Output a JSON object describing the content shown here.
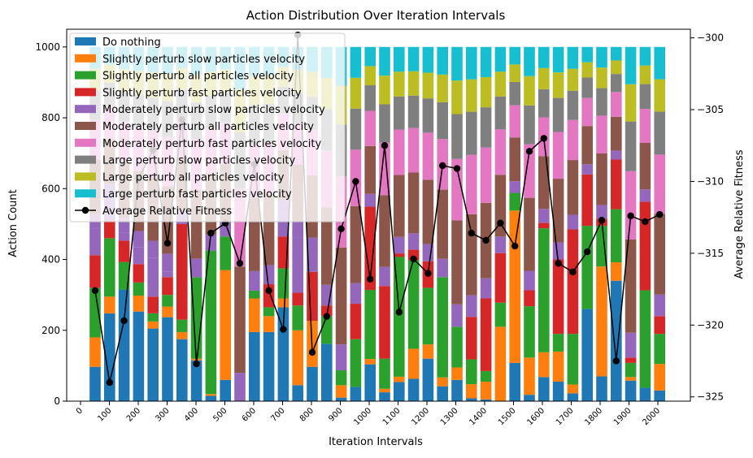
{
  "chart_data": {
    "type": "bar",
    "title": "Action Distribution Over Iteration Intervals",
    "xlabel": "Iteration Intervals",
    "ylabel": "Action Count",
    "y2label": "Average Relative Fitness",
    "ylim": [
      0,
      1050
    ],
    "y2lim": [
      -325.3,
      -299.4
    ],
    "y_ticks": [
      "0",
      "200",
      "400",
      "600",
      "800",
      "1000"
    ],
    "y2_ticks": [
      "−325",
      "−320",
      "−315",
      "−310",
      "−305",
      "−300"
    ],
    "x_ticks": [
      "0",
      "100",
      "200",
      "300",
      "400",
      "500",
      "600",
      "700",
      "800",
      "900",
      "1000",
      "1100",
      "1200",
      "1300",
      "1400",
      "1500",
      "1600",
      "1700",
      "1800",
      "1900",
      "2000"
    ],
    "legend_position": "upper-left",
    "colors": [
      "#1f77b4",
      "#ff7f0e",
      "#2ca02c",
      "#d62728",
      "#9467bd",
      "#8c564b",
      "#e377c2",
      "#7f7f7f",
      "#bcbd22",
      "#17becf"
    ],
    "series": [
      {
        "name": "Do nothing",
        "values": [
          97,
          248,
          315,
          253,
          205,
          237,
          175,
          115,
          15,
          60,
          0,
          195,
          195,
          265,
          45,
          97,
          162,
          10,
          40,
          104,
          25,
          54,
          63,
          120,
          42,
          60,
          8,
          5,
          0,
          108,
          18,
          68,
          55,
          22,
          260,
          70,
          340,
          58,
          38,
          30,
          212
        ]
      },
      {
        "name": "Slightly perturb slow particles velocity",
        "values": [
          83,
          47,
          0,
          45,
          20,
          30,
          20,
          5,
          5,
          310,
          0,
          95,
          45,
          25,
          155,
          130,
          0,
          35,
          0,
          15,
          10,
          15,
          85,
          40,
          25,
          35,
          40,
          50,
          210,
          430,
          105,
          70,
          85,
          25,
          0,
          310,
          52,
          10,
          0,
          75,
          18
        ]
      },
      {
        "name": "Slightly perturb all particles velocity",
        "values": [
          140,
          165,
          78,
          37,
          23,
          33,
          35,
          230,
          405,
          95,
          0,
          22,
          25,
          85,
          70,
          0,
          78,
          42,
          135,
          195,
          85,
          338,
          250,
          160,
          283,
          115,
          70,
          30,
          68,
          50,
          145,
          350,
          50,
          143,
          235,
          115,
          150,
          40,
          275,
          85,
          82
        ]
      },
      {
        "name": "Slightly perturb fast particles velocity",
        "values": [
          92,
          50,
          60,
          52,
          47,
          50,
          270,
          0,
          0,
          0,
          0,
          0,
          65,
          90,
          36,
          138,
          30,
          0,
          100,
          235,
          205,
          10,
          30,
          75,
          0,
          0,
          120,
          205,
          140,
          0,
          45,
          15,
          210,
          295,
          145,
          20,
          140,
          15,
          250,
          50,
          185
        ]
      },
      {
        "name": "Moderately perturb slow particles velocity",
        "values": [
          75,
          70,
          23,
          48,
          110,
          15,
          0,
          0,
          0,
          0,
          0,
          0,
          0,
          65,
          157,
          50,
          0,
          0,
          0,
          0,
          0,
          0,
          0,
          0,
          0,
          0,
          0,
          0,
          0,
          0,
          0,
          0,
          0,
          0,
          0,
          0,
          0,
          0,
          0,
          0,
          0
        ]
      },
      {
        "name": "Moderately perturb all particles velocity",
        "values": [
          0,
          0,
          0,
          0,
          0,
          0,
          0,
          0,
          0,
          0,
          0,
          0,
          0,
          0,
          0,
          0,
          0,
          0,
          0,
          0,
          0,
          0,
          0,
          0,
          0,
          0,
          0,
          0,
          0,
          0,
          0,
          0,
          0,
          0,
          0,
          0,
          0,
          0,
          0,
          0,
          0
        ]
      },
      {
        "name": "Moderately perturb fast particles velocity",
        "values": [
          0,
          0,
          0,
          0,
          0,
          0,
          0,
          0,
          0,
          0,
          0,
          0,
          0,
          0,
          0,
          0,
          0,
          0,
          0,
          0,
          0,
          0,
          0,
          0,
          0,
          0,
          0,
          0,
          0,
          0,
          0,
          0,
          0,
          0,
          0,
          0,
          0,
          0,
          0,
          0,
          0
        ]
      },
      {
        "name": "Large perturb slow particles velocity",
        "values": [
          0,
          0,
          0,
          0,
          0,
          0,
          0,
          0,
          0,
          0,
          0,
          0,
          0,
          0,
          0,
          0,
          0,
          0,
          0,
          0,
          0,
          0,
          0,
          0,
          0,
          0,
          0,
          0,
          0,
          0,
          0,
          0,
          0,
          0,
          0,
          0,
          0,
          0,
          0,
          0,
          0
        ]
      },
      {
        "name": "Large perturb all particles velocity",
        "values": [
          0,
          0,
          0,
          0,
          0,
          0,
          0,
          0,
          0,
          0,
          0,
          0,
          0,
          0,
          0,
          0,
          0,
          0,
          0,
          0,
          0,
          0,
          0,
          0,
          0,
          0,
          0,
          0,
          0,
          0,
          0,
          0,
          0,
          0,
          0,
          0,
          0,
          0,
          0,
          0,
          0
        ]
      },
      {
        "name": "Large perturb fast particles velocity",
        "values": [
          0,
          0,
          0,
          0,
          0,
          0,
          0,
          0,
          0,
          0,
          0,
          0,
          0,
          0,
          0,
          0,
          0,
          0,
          0,
          0,
          0,
          0,
          0,
          0,
          0,
          0,
          0,
          0,
          0,
          0,
          0,
          0,
          0,
          0,
          0,
          0,
          0,
          0,
          0,
          0,
          0
        ]
      }
    ],
    "top_segments": [
      [
        0,
        0,
        0,
        200,
        0,
        0,
        0,
        0,
        200,
        0,
        0,
        0,
        0,
        0,
        0,
        0,
        0,
        0,
        0,
        0,
        0,
        0,
        0,
        0,
        0,
        0,
        0,
        0,
        0,
        0,
        0,
        0,
        0,
        0,
        0,
        0,
        0,
        0,
        0,
        0,
        0
      ],
      [
        0,
        0,
        0,
        0,
        0,
        0,
        0,
        0,
        0,
        0,
        0,
        0,
        0,
        0,
        0,
        0,
        0,
        0,
        0,
        0,
        0,
        0,
        0,
        0,
        0,
        0,
        0,
        0,
        0,
        0,
        0,
        0,
        0,
        0,
        0,
        0,
        0,
        0,
        0,
        0,
        0
      ]
    ],
    "upper_stacks": [
      [
        0,
        0,
        0,
        0,
        0,
        0,
        0,
        0,
        0,
        0,
        0,
        0,
        0,
        0,
        0,
        0,
        0,
        0,
        0,
        0,
        0,
        0,
        0,
        0,
        0,
        0,
        0,
        0,
        0,
        0,
        0,
        0,
        0,
        0,
        0,
        0,
        0,
        0,
        0,
        0,
        0
      ],
      [
        0,
        0,
        0,
        0,
        0,
        0,
        0,
        0,
        0,
        0,
        0,
        0,
        0,
        0,
        0,
        0,
        0,
        0,
        0,
        0,
        0,
        0,
        0,
        0,
        0,
        0,
        0,
        0,
        0,
        0,
        0,
        0,
        0,
        0,
        0,
        0,
        0,
        0,
        0,
        0,
        0
      ]
    ],
    "line_name": "Average Relative Fitness",
    "line_values": [
      -317.6,
      -324.0,
      -319.7,
      -309.8,
      -307.8,
      -314.3,
      -305.7,
      -322.7,
      -313.6,
      -312.9,
      -315.7,
      -308.8,
      -317.6,
      -320.3,
      -299.8,
      -321.9,
      -319.4,
      -313.3,
      -310.0,
      -316.8,
      -307.5,
      -319.1,
      -315.4,
      -316.4,
      -308.9,
      -309.1,
      -313.6,
      -314.1,
      -312.9,
      -314.5,
      -307.9,
      -307.0,
      -315.7,
      -316.3,
      -314.9,
      -312.7,
      -322.5,
      -312.4,
      -312.8,
      -312.3
    ]
  }
}
